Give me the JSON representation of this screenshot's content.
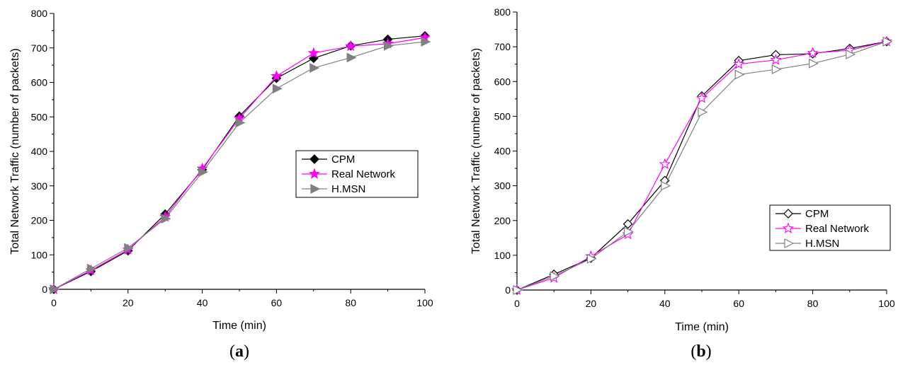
{
  "chart_data": [
    {
      "panel": "a",
      "type": "line",
      "caption": "(a)",
      "caption_letter": "a",
      "xlabel": "Time (min)",
      "ylabel": "Total Network Traffic (number of packets)",
      "xlim": [
        0,
        100
      ],
      "ylim": [
        0,
        800
      ],
      "xticks": [
        0,
        20,
        40,
        60,
        80,
        100
      ],
      "yticks": [
        0,
        100,
        200,
        300,
        400,
        500,
        600,
        700,
        800
      ],
      "grid": false,
      "legend_position": "right",
      "x": [
        0,
        10,
        20,
        30,
        40,
        50,
        60,
        70,
        80,
        90,
        100
      ],
      "series": [
        {
          "name": "CPM",
          "color": "#000000",
          "marker": "diamond-filled",
          "values": [
            0,
            52,
            112,
            218,
            347,
            502,
            612,
            670,
            706,
            725,
            735
          ]
        },
        {
          "name": "Real Network",
          "color": "#ff00ff",
          "marker": "star-filled",
          "values": [
            0,
            55,
            115,
            210,
            350,
            495,
            618,
            685,
            705,
            712,
            730
          ]
        },
        {
          "name": "H.MSN",
          "color": "#808080",
          "marker": "triangle-right-filled",
          "values": [
            0,
            60,
            120,
            205,
            340,
            483,
            582,
            642,
            672,
            706,
            718
          ]
        }
      ]
    },
    {
      "panel": "b",
      "type": "line",
      "caption": "(b)",
      "caption_letter": "b",
      "xlabel": "Time (min)",
      "ylabel": "Total Network Traffic (number of packets)",
      "xlim": [
        0,
        100
      ],
      "ylim": [
        0,
        800
      ],
      "xticks": [
        0,
        20,
        40,
        60,
        80,
        100
      ],
      "yticks": [
        0,
        100,
        200,
        300,
        400,
        500,
        600,
        700,
        800
      ],
      "grid": false,
      "legend_position": "bottom-right",
      "x": [
        0,
        10,
        20,
        30,
        40,
        50,
        60,
        70,
        80,
        90,
        100
      ],
      "series": [
        {
          "name": "CPM",
          "color": "#000000",
          "marker": "diamond-open",
          "values": [
            0,
            45,
            92,
            190,
            315,
            558,
            660,
            677,
            680,
            695,
            715
          ]
        },
        {
          "name": "Real Network",
          "color": "#ff00ff",
          "marker": "star-open",
          "values": [
            0,
            35,
            97,
            160,
            362,
            552,
            650,
            662,
            682,
            690,
            715
          ]
        },
        {
          "name": "H.MSN",
          "color": "#808080",
          "marker": "triangle-right-open",
          "values": [
            0,
            40,
            90,
            168,
            300,
            512,
            620,
            635,
            652,
            678,
            715
          ]
        }
      ]
    }
  ]
}
